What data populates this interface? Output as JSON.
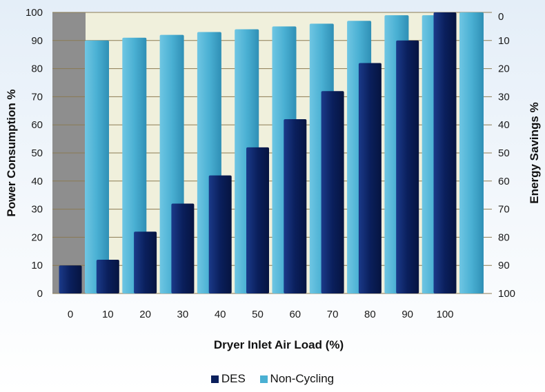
{
  "chart_data": {
    "type": "bar",
    "title": "",
    "xlabel": "Dryer Inlet Air Load (%)",
    "ylabel": "Power Consumption %",
    "y2label": "Energy Savings %",
    "categories": [
      "0",
      "10",
      "20",
      "30",
      "40",
      "50",
      "60",
      "70",
      "80",
      "90",
      "100"
    ],
    "ylim": [
      0,
      100
    ],
    "y_ticks": [
      "0",
      "10",
      "20",
      "30",
      "40",
      "50",
      "60",
      "70",
      "80",
      "90",
      "100"
    ],
    "y2_ticks": [
      "100",
      "90",
      "80",
      "70",
      "60",
      "50",
      "40",
      "30",
      "20",
      "10",
      "0"
    ],
    "series": [
      {
        "name": "DES",
        "color": "#0a1f5c",
        "values": [
          10,
          12,
          22,
          32,
          42,
          52,
          62,
          72,
          82,
          90,
          100
        ]
      },
      {
        "name": "Non-Cycling",
        "color": "#4ab0d3",
        "values": [
          90,
          91,
          92,
          93,
          94,
          95,
          96,
          97,
          99,
          99,
          100
        ]
      }
    ],
    "grid": true,
    "legend_position": "bottom",
    "colors": {
      "plot_background": "#f0f0dc",
      "left_band": "#8e8e8e",
      "gridline": "#8a7a52"
    }
  }
}
